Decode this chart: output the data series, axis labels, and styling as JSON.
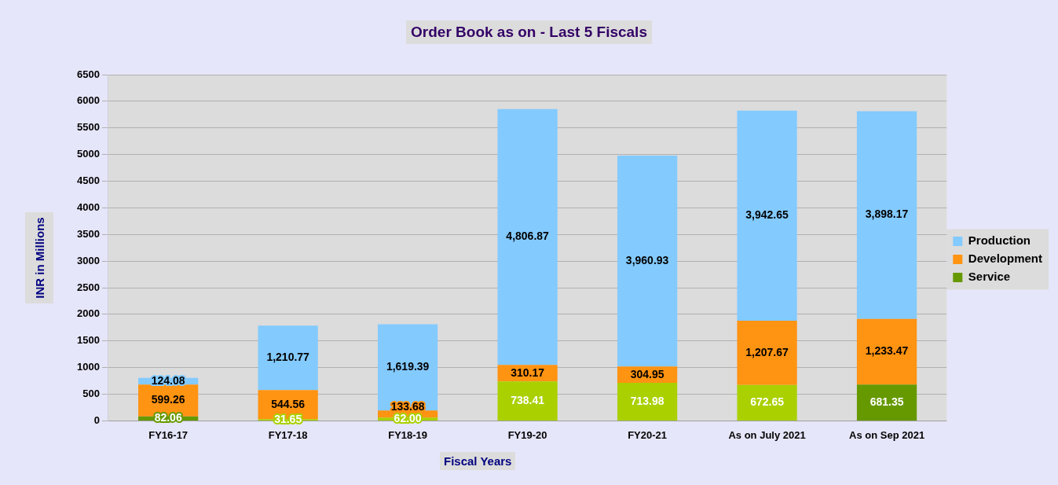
{
  "chart_data": {
    "type": "bar",
    "title": "Order Book as on - Last 5 Fiscals",
    "xlabel": "Fiscal Years",
    "ylabel": "INR in Millions",
    "categories": [
      "FY16-17",
      "FY17-18",
      "FY18-19",
      "FY19-20",
      "FY20-21",
      "As on July 2021",
      "As on Sep 2021"
    ],
    "stacked": true,
    "ylim": [
      0,
      6500
    ],
    "yticks": [
      0,
      500,
      1000,
      1500,
      2000,
      2500,
      3000,
      3500,
      4000,
      4500,
      5000,
      5500,
      6000,
      6500
    ],
    "grid": "y",
    "legend": "right",
    "series": [
      {
        "name": "Service",
        "color": "#669900",
        "colors": [
          "#669900",
          "#aad000",
          "#aad000",
          "#aad000",
          "#aad000",
          "#aad000",
          "#669900"
        ],
        "values": [
          82.06,
          31.65,
          62.0,
          738.41,
          713.98,
          672.65,
          681.35
        ],
        "value_labels": [
          "82.06",
          "31.65",
          "62.00",
          "738.41",
          "713.98",
          "672.65",
          "681.35"
        ]
      },
      {
        "name": "Development",
        "color": "#ff9312",
        "values": [
          599.26,
          544.56,
          133.68,
          310.17,
          304.95,
          1207.67,
          1233.47
        ],
        "value_labels": [
          "599.26",
          "544.56",
          "133.68",
          "310.17",
          "304.95",
          "1,207.67",
          "1,233.47"
        ]
      },
      {
        "name": "Production",
        "color": "#83caff",
        "values": [
          124.08,
          1210.77,
          1619.39,
          4806.87,
          3960.93,
          3942.65,
          3898.17
        ],
        "value_labels": [
          "124.08",
          "1,210.77",
          "1,619.39",
          "4,806.87",
          "3,960.93",
          "3,942.65",
          "3,898.17"
        ]
      }
    ]
  }
}
